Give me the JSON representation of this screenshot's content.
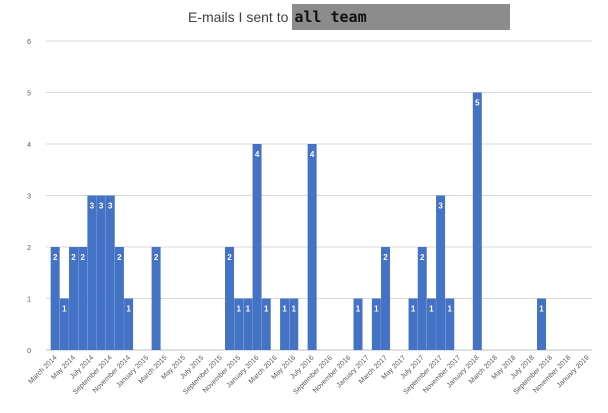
{
  "chart_data": {
    "type": "bar",
    "title": "E-mails I sent to",
    "title_highlight": "all team",
    "xlabel": "",
    "ylabel": "",
    "ylim": [
      0,
      6
    ],
    "yticks": [
      0,
      1,
      2,
      3,
      4,
      5,
      6
    ],
    "grid": true,
    "bar_color": "#4472c4",
    "x_labels": [
      "March 2014",
      "May 2014",
      "July 2014",
      "September 2014",
      "November 2014",
      "January 2015",
      "March 2015",
      "May 2015",
      "July 2015",
      "September 2015",
      "November 2015",
      "January 2016",
      "March 2016",
      "May 2016",
      "July 2016",
      "September 2016",
      "November 2016",
      "January 2017",
      "March 2017",
      "May 2017",
      "July 2017",
      "September 2017",
      "November 2017",
      "January 2018",
      "March 2018",
      "May 2018",
      "July 2018",
      "September 2018",
      "November 2018",
      "January 2019"
    ],
    "start_month": "2014-03",
    "categories": [
      "2014-03",
      "2014-04",
      "2014-05",
      "2014-06",
      "2014-07",
      "2014-08",
      "2014-09",
      "2014-10",
      "2014-11",
      "2014-12",
      "2015-01",
      "2015-02",
      "2015-03",
      "2015-04",
      "2015-05",
      "2015-06",
      "2015-07",
      "2015-08",
      "2015-09",
      "2015-10",
      "2015-11",
      "2015-12",
      "2016-01",
      "2016-02",
      "2016-03",
      "2016-04",
      "2016-05",
      "2016-06",
      "2016-07",
      "2016-08",
      "2016-09",
      "2016-10",
      "2016-11",
      "2016-12",
      "2017-01",
      "2017-02",
      "2017-03",
      "2017-04",
      "2017-05",
      "2017-06",
      "2017-07",
      "2017-08",
      "2017-09",
      "2017-10",
      "2017-11",
      "2017-12",
      "2018-01",
      "2018-02",
      "2018-03",
      "2018-04",
      "2018-05",
      "2018-06",
      "2018-07",
      "2018-08",
      "2018-09",
      "2018-10",
      "2018-11",
      "2018-12",
      "2019-01"
    ],
    "values": [
      2,
      1,
      2,
      2,
      3,
      3,
      3,
      2,
      1,
      0,
      0,
      2,
      0,
      0,
      0,
      0,
      0,
      0,
      0,
      2,
      1,
      1,
      4,
      1,
      0,
      1,
      1,
      0,
      4,
      0,
      0,
      0,
      0,
      1,
      0,
      1,
      2,
      0,
      0,
      1,
      2,
      1,
      3,
      1,
      0,
      0,
      5,
      0,
      0,
      0,
      0,
      0,
      0,
      1,
      0,
      0,
      0,
      0,
      0
    ]
  }
}
